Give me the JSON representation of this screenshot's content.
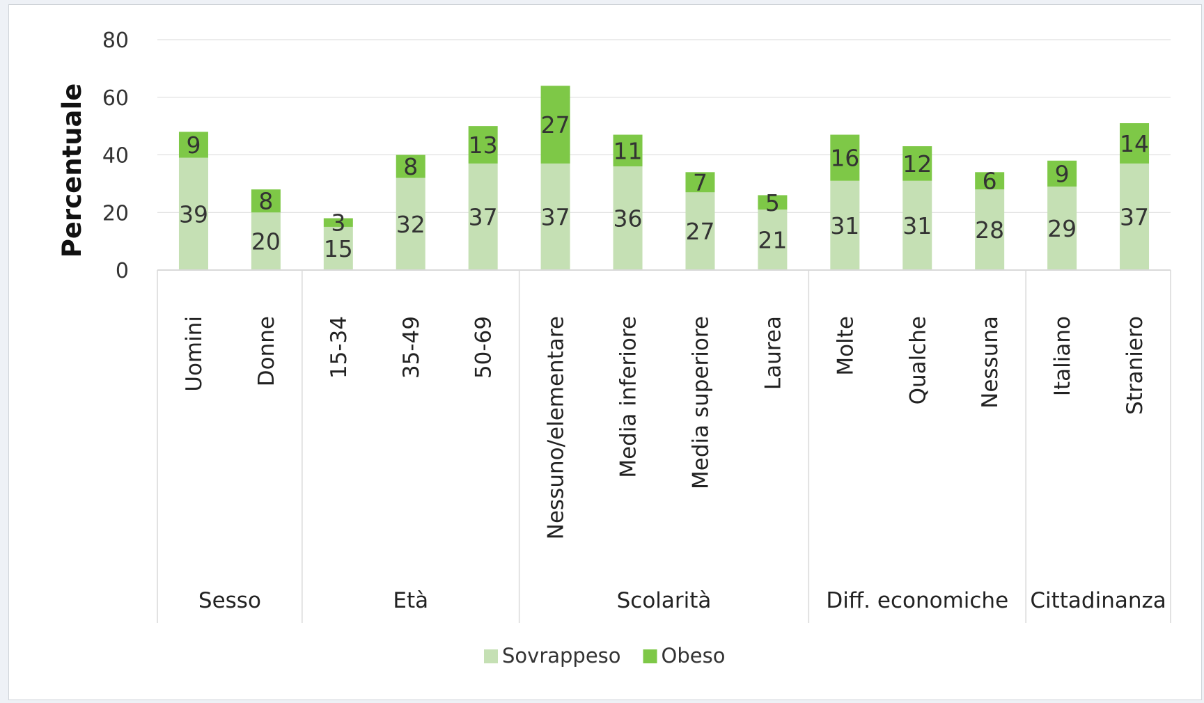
{
  "chart_data": {
    "type": "bar",
    "stacked": true,
    "title": "",
    "xlabel": "",
    "ylabel": "Percentuale",
    "ylim": [
      0,
      80
    ],
    "yticks": [
      0,
      20,
      40,
      60,
      80
    ],
    "grid": true,
    "legend_position": "bottom",
    "categories": [
      "Uomini",
      "Donne",
      "15-34",
      "35-49",
      "50-69",
      "Nessuno/elementare",
      "Media inferiore",
      "Media superiore",
      "Laurea",
      "Molte",
      "Qualche",
      "Nessuna",
      "Italiano",
      "Straniero"
    ],
    "groups": [
      {
        "label": "Sesso",
        "count": 2
      },
      {
        "label": "Età",
        "count": 3
      },
      {
        "label": "Scolarità",
        "count": 4
      },
      {
        "label": "Diff. economiche",
        "count": 3
      },
      {
        "label": "Cittadinanza",
        "count": 2
      }
    ],
    "series": [
      {
        "name": "Sovrappeso",
        "color": "#c5e0b4",
        "values": [
          39,
          20,
          15,
          32,
          37,
          37,
          36,
          27,
          21,
          31,
          31,
          28,
          29,
          37
        ]
      },
      {
        "name": "Obeso",
        "color": "#7ec847",
        "values": [
          9,
          8,
          3,
          8,
          13,
          27,
          11,
          7,
          5,
          16,
          12,
          6,
          9,
          14
        ]
      }
    ]
  }
}
